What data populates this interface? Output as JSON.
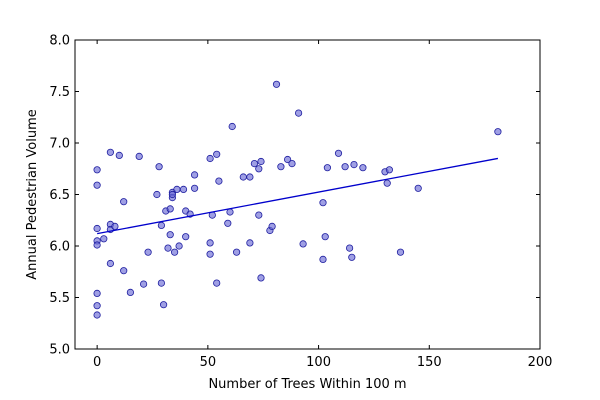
{
  "chart_data": {
    "type": "scatter",
    "title": "",
    "xlabel": "Number of Trees Within 100 m",
    "ylabel": "Annual Pedestrian Volume",
    "xlim": [
      -10,
      200
    ],
    "ylim": [
      5.0,
      8.0
    ],
    "xticks": [
      0,
      50,
      100,
      150,
      200
    ],
    "xtick_labels": [
      "0",
      "50",
      "100",
      "150",
      "200"
    ],
    "yticks": [
      5.0,
      5.5,
      6.0,
      6.5,
      7.0,
      7.5,
      8.0
    ],
    "ytick_labels": [
      "5.0",
      "5.5",
      "6.0",
      "6.5",
      "7.0",
      "7.5",
      "8.0"
    ],
    "grid": false,
    "colors": {
      "points": "#6b6bd6",
      "point_edge": "#1f1fa0",
      "trend": "#0000cc"
    },
    "series": [
      {
        "name": "",
        "points": [
          [
            0,
            6.74
          ],
          [
            0,
            6.59
          ],
          [
            0,
            6.17
          ],
          [
            0,
            6.05
          ],
          [
            0,
            6.01
          ],
          [
            0,
            5.54
          ],
          [
            0,
            5.42
          ],
          [
            0,
            5.33
          ],
          [
            3,
            6.07
          ],
          [
            6,
            6.91
          ],
          [
            6,
            6.21
          ],
          [
            6,
            6.16
          ],
          [
            6,
            5.83
          ],
          [
            8,
            6.19
          ],
          [
            10,
            6.88
          ],
          [
            12,
            6.43
          ],
          [
            12,
            5.76
          ],
          [
            15,
            5.55
          ],
          [
            19,
            6.87
          ],
          [
            21,
            5.63
          ],
          [
            23,
            5.94
          ],
          [
            27,
            6.5
          ],
          [
            28,
            6.77
          ],
          [
            29,
            6.2
          ],
          [
            29,
            5.64
          ],
          [
            30,
            5.43
          ],
          [
            31,
            6.34
          ],
          [
            32,
            5.98
          ],
          [
            33,
            6.36
          ],
          [
            33,
            6.11
          ],
          [
            34,
            6.52
          ],
          [
            34,
            6.47
          ],
          [
            34,
            6.5
          ],
          [
            35,
            5.94
          ],
          [
            36,
            6.55
          ],
          [
            37,
            6.0
          ],
          [
            39,
            6.55
          ],
          [
            40,
            6.34
          ],
          [
            40,
            6.09
          ],
          [
            42,
            6.31
          ],
          [
            44,
            6.69
          ],
          [
            44,
            6.56
          ],
          [
            51,
            6.85
          ],
          [
            51,
            6.03
          ],
          [
            51,
            5.92
          ],
          [
            52,
            6.3
          ],
          [
            54,
            6.89
          ],
          [
            54,
            5.64
          ],
          [
            55,
            6.63
          ],
          [
            59,
            6.22
          ],
          [
            60,
            6.33
          ],
          [
            61,
            7.16
          ],
          [
            63,
            5.94
          ],
          [
            66,
            6.67
          ],
          [
            69,
            6.67
          ],
          [
            69,
            6.03
          ],
          [
            71,
            6.8
          ],
          [
            73,
            6.75
          ],
          [
            73,
            6.3
          ],
          [
            74,
            6.82
          ],
          [
            74,
            5.69
          ],
          [
            78,
            6.15
          ],
          [
            79,
            6.19
          ],
          [
            81,
            7.57
          ],
          [
            83,
            6.77
          ],
          [
            86,
            6.84
          ],
          [
            88,
            6.8
          ],
          [
            91,
            7.29
          ],
          [
            93,
            6.02
          ],
          [
            102,
            6.42
          ],
          [
            102,
            5.87
          ],
          [
            103,
            6.09
          ],
          [
            104,
            6.76
          ],
          [
            109,
            6.9
          ],
          [
            112,
            6.77
          ],
          [
            114,
            5.98
          ],
          [
            115,
            5.89
          ],
          [
            116,
            6.79
          ],
          [
            120,
            6.76
          ],
          [
            130,
            6.72
          ],
          [
            131,
            6.61
          ],
          [
            132,
            6.74
          ],
          [
            137,
            5.94
          ],
          [
            145,
            6.56
          ],
          [
            181,
            7.11
          ]
        ]
      }
    ],
    "trend_line": {
      "x": [
        0,
        181
      ],
      "y": [
        6.12,
        6.85
      ]
    }
  }
}
